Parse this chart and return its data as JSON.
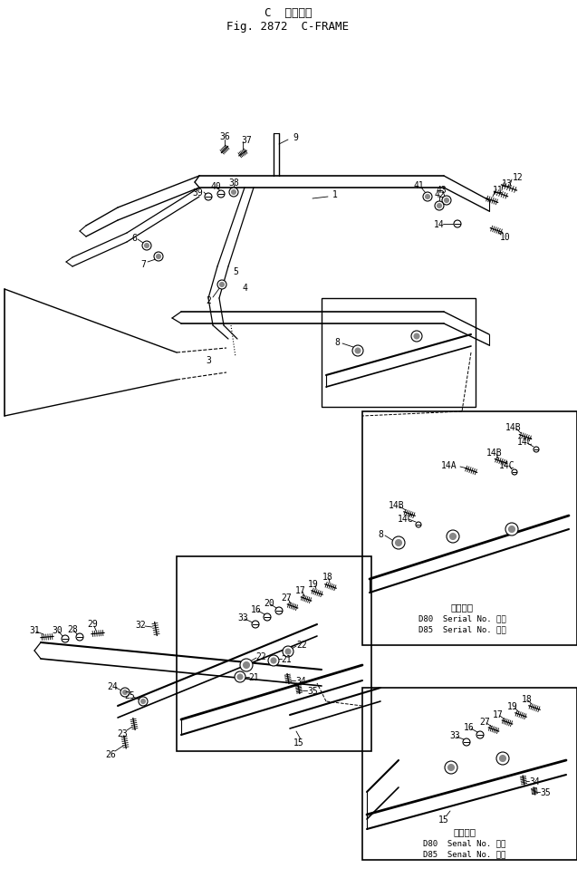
{
  "title_jp": "C  フレーム",
  "title_en": "Fig. 2872  C-FRAME",
  "bg_color": "#ffffff",
  "fig_width": 6.37,
  "fig_height": 9.7,
  "inset1_label": "適用号等",
  "inset1_d80": "D80  Serial No. ・～",
  "inset1_d85": "D85  Serial No. ・～",
  "inset2_label": "適用号等",
  "inset2_d80": "D80  Senal No. ・～",
  "inset2_d85": "D85  Senal No. ・～"
}
